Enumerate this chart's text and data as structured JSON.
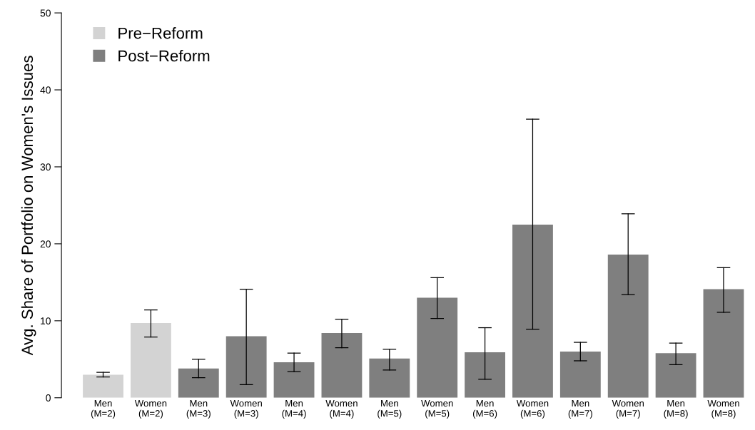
{
  "chart_data": {
    "type": "bar",
    "ylabel": "Avg. Share of Portfolio on Women's Issues",
    "categories": [
      "Men\n(M=2)",
      "Women\n(M=2)",
      "Men\n(M=3)",
      "Women\n(M=3)",
      "Men\n(M=4)",
      "Women\n(M=4)",
      "Men\n(M=5)",
      "Women\n(M=5)",
      "Men\n(M=6)",
      "Women\n(M=6)",
      "Men\n(M=7)",
      "Women\n(M=7)",
      "Men\n(M=8)",
      "Women\n(M=8)"
    ],
    "series": [
      {
        "name": "Pre−Reform",
        "color": "#d3d3d3",
        "values": [
          3.0,
          9.7,
          null,
          null,
          null,
          null,
          null,
          null,
          null,
          null,
          null,
          null,
          null,
          null
        ],
        "errors": [
          [
            2.7,
            3.3
          ],
          [
            7.9,
            11.4
          ],
          null,
          null,
          null,
          null,
          null,
          null,
          null,
          null,
          null,
          null,
          null,
          null
        ]
      },
      {
        "name": "Post−Reform",
        "color": "#7f7f7f",
        "values": [
          null,
          null,
          3.8,
          8.0,
          4.6,
          8.4,
          5.1,
          13.0,
          5.9,
          22.5,
          6.0,
          18.6,
          5.8,
          14.1
        ],
        "errors": [
          null,
          null,
          [
            2.6,
            5.0
          ],
          [
            1.7,
            14.1
          ],
          [
            3.4,
            5.8
          ],
          [
            6.5,
            10.2
          ],
          [
            3.6,
            6.3
          ],
          [
            10.3,
            15.6
          ],
          [
            2.4,
            9.1
          ],
          [
            8.9,
            36.2
          ],
          [
            4.8,
            7.2
          ],
          [
            13.4,
            23.9
          ],
          [
            4.3,
            7.1
          ],
          [
            11.1,
            16.9
          ]
        ]
      }
    ],
    "ylim": [
      0,
      50
    ],
    "yticks": [
      0,
      10,
      20,
      30,
      40,
      50
    ],
    "grid": false,
    "legend": "top left"
  }
}
